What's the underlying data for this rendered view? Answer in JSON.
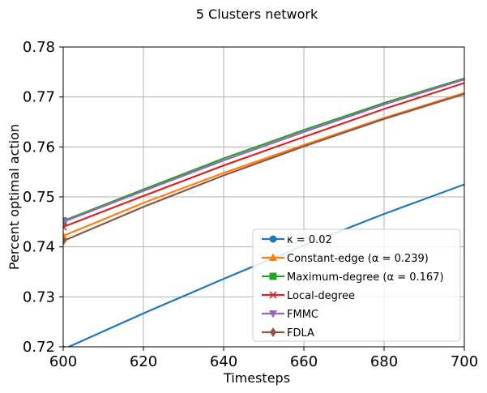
{
  "chart_data": {
    "type": "line",
    "title": "5 Clusters network",
    "xlabel": "Timesteps",
    "ylabel": "Percent optimal action",
    "xlim": [
      600,
      700
    ],
    "ylim": [
      0.72,
      0.78
    ],
    "xticks": [
      600,
      620,
      640,
      660,
      680,
      700
    ],
    "yticks": [
      0.72,
      0.73,
      0.74,
      0.75,
      0.76,
      0.77,
      0.78
    ],
    "xtick_labels": [
      "600",
      "620",
      "640",
      "660",
      "680",
      "700"
    ],
    "ytick_labels": [
      "0.72",
      "0.73",
      "0.74",
      "0.75",
      "0.76",
      "0.77",
      "0.78"
    ],
    "grid": true,
    "legend_position": "lower-right",
    "series": [
      {
        "legend": "κ = 0.02",
        "color": "#1f77b4",
        "marker": "circle",
        "x": [
          600,
          620,
          640,
          660,
          680,
          700
        ],
        "y": [
          0.7195,
          0.7267,
          0.7336,
          0.7403,
          0.7466,
          0.7525
        ]
      },
      {
        "legend": "Constant-edge (α = 0.239)",
        "color": "#ff7f0e",
        "marker": "triangle-up",
        "x": [
          600,
          620,
          640,
          660,
          680,
          700
        ],
        "y": [
          0.7422,
          0.7488,
          0.7548,
          0.7604,
          0.7658,
          0.7708
        ]
      },
      {
        "legend": "Maximum-degree (α = 0.167)",
        "color": "#2ca02c",
        "marker": "square",
        "x": [
          600,
          620,
          640,
          660,
          680,
          700
        ],
        "y": [
          0.7452,
          0.7515,
          0.7577,
          0.7634,
          0.7688,
          0.7737
        ]
      },
      {
        "legend": "Local-degree",
        "color": "#d62728",
        "marker": "x",
        "x": [
          600,
          620,
          640,
          660,
          680,
          700
        ],
        "y": [
          0.744,
          0.7502,
          0.7563,
          0.762,
          0.7676,
          0.7728
        ]
      },
      {
        "legend": "FMMC",
        "color": "#9467bd",
        "marker": "triangle-down",
        "x": [
          600,
          620,
          640,
          660,
          680,
          700
        ],
        "y": [
          0.745,
          0.7512,
          0.7573,
          0.763,
          0.7685,
          0.7735
        ]
      },
      {
        "legend": "FDLA",
        "color": "#8c564b",
        "marker": "diamond",
        "x": [
          600,
          620,
          640,
          660,
          680,
          700
        ],
        "y": [
          0.7412,
          0.748,
          0.7543,
          0.7601,
          0.7656,
          0.7706
        ]
      }
    ]
  }
}
